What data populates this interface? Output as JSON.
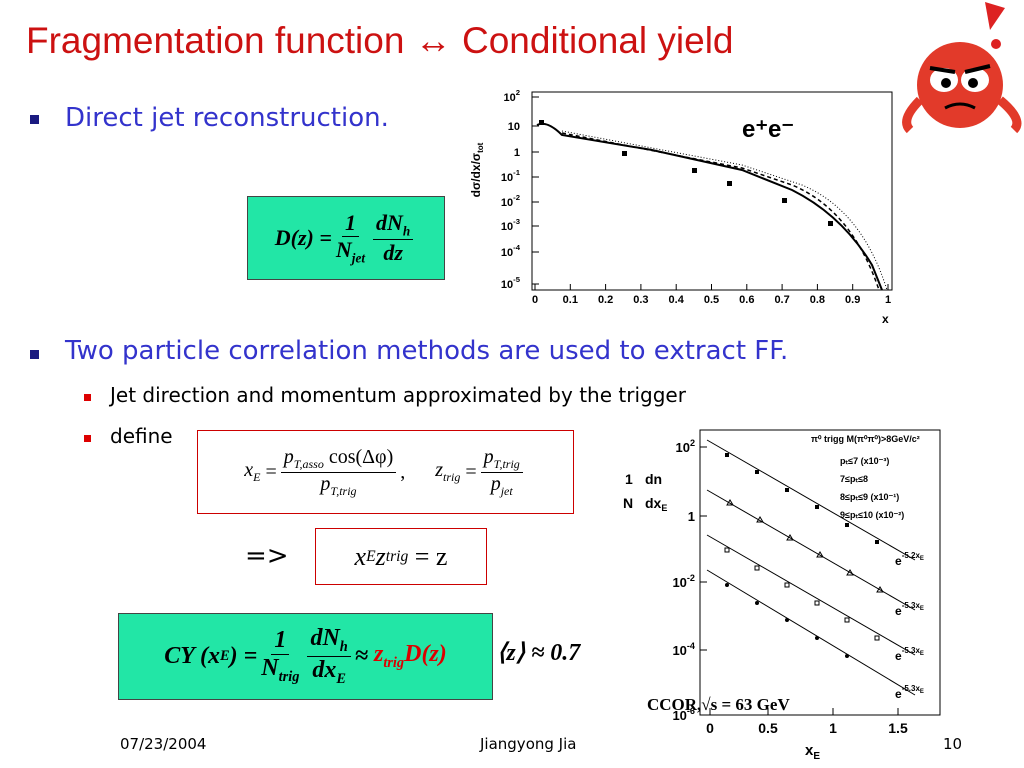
{
  "title": "Fragmentation function ↔ Conditional yield",
  "bullets": [
    {
      "text": "Direct jet reconstruction."
    },
    {
      "text": "Two particle correlation methods are used to extract FF.",
      "sub": [
        "Jet direction and momentum approximated by the trigger",
        "define"
      ]
    }
  ],
  "eq_ff": {
    "lhs": "D(z) =",
    "num": "1",
    "den": "N",
    "den_sub": "jet",
    "num2": "dN",
    "num2_sub": "h",
    "den2": "dz"
  },
  "eq_def": {
    "xe": "x",
    "xe_sub": "E",
    "eq": "=",
    "num": "p",
    "num_sub": "T,asso",
    "num_rest": "cos(Δφ)",
    "den": "p",
    "den_sub": "T,trig",
    "comma": ",",
    "z": "z",
    "z_sub": "trig",
    "eq2": "=",
    "num2": "p",
    "num2_sub": "T,trig",
    "den2": "p",
    "den2_sub": "jet"
  },
  "arrow": "=>",
  "eq_prod": {
    "x": "x",
    "x_sub": "E",
    "z": "z",
    "z_sub": "trig",
    "rhs": "= z"
  },
  "eq_cy": {
    "lhs": "CY (x",
    "lhs_sub": "E",
    "lhs_end": ") =",
    "num": "1",
    "den": "N",
    "den_sub": "trig",
    "num2": "dN",
    "num2_sub": "h",
    "den2": "dx",
    "den2_sub": "E",
    "approx": "≈",
    "z": "z",
    "z_sub": "trig",
    "d": "D(z)",
    "mean": "⟨z⟩ ≈ 0.7"
  },
  "plot_ee": {
    "label": "e⁺e⁻",
    "y_title": "dσ/dx/σ",
    "y_title_sub": "tot",
    "x_title": "x",
    "xticks": [
      "0",
      "0.1",
      "0.2",
      "0.3",
      "0.4",
      "0.5",
      "0.6",
      "0.7",
      "0.8",
      "0.9",
      "1"
    ],
    "yticks": [
      {
        "base": "10",
        "exp": "2"
      },
      "10",
      "1",
      {
        "base": "10",
        "exp": "-1"
      },
      {
        "base": "10",
        "exp": "-2"
      },
      {
        "base": "10",
        "exp": "-3"
      },
      {
        "base": "10",
        "exp": "-4"
      },
      {
        "base": "10",
        "exp": "-5"
      }
    ]
  },
  "plot_ccor": {
    "y_title_num": "1",
    "y_title_den": "N",
    "y_title_num2": "dn",
    "y_title_den2": "dx",
    "y_title_den2_sub": "E",
    "x_title": "x",
    "x_title_sub": "E",
    "xticks": [
      "0",
      "0.5",
      "1",
      "1.5"
    ],
    "yticks": [
      {
        "base": "10",
        "exp": "2"
      },
      "1",
      {
        "base": "10",
        "exp": "-2"
      },
      {
        "base": "10",
        "exp": "-4"
      },
      {
        "base": "10",
        "exp": "-6"
      }
    ],
    "legend_title": "π⁰ trigg M(π⁰π⁰)>8GeV/c²",
    "legend": [
      "pₜ≤7  (x10⁻³)",
      "7≤pₜ≤8",
      "8≤pₜ≤9  (x10⁻¹)",
      "9≤pₜ≤10  (x10⁻²)"
    ],
    "fits": [
      {
        "base": "e",
        "exp": "-5.2x",
        "sub": "E"
      },
      {
        "base": "e",
        "exp": "-5.3x",
        "sub": "E"
      },
      {
        "base": "e",
        "exp": "-5.3x",
        "sub": "E"
      },
      {
        "base": "e",
        "exp": "-5.3x",
        "sub": "E"
      }
    ],
    "caption": "CCOR,√s = 63 GeV"
  },
  "footer": {
    "date": "07/23/2004",
    "author": "Jiangyong Jia",
    "page": "10"
  }
}
